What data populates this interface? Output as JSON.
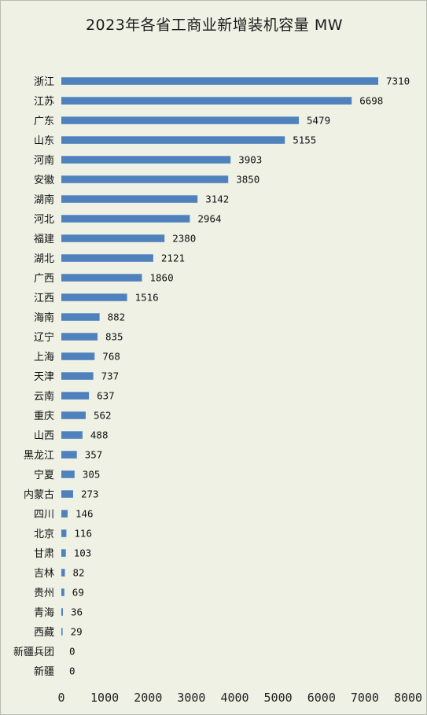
{
  "chart_data": {
    "type": "bar",
    "orientation": "horizontal",
    "title": "2023年各省工商业新增装机容量 MW",
    "categories": [
      "浙江",
      "江苏",
      "广东",
      "山东",
      "河南",
      "安徽",
      "湖南",
      "河北",
      "福建",
      "湖北",
      "广西",
      "江西",
      "海南",
      "辽宁",
      "上海",
      "天津",
      "云南",
      "重庆",
      "山西",
      "黑龙江",
      "宁夏",
      "内蒙古",
      "四川",
      "北京",
      "甘肃",
      "吉林",
      "贵州",
      "青海",
      "西藏",
      "新疆兵团",
      "新疆"
    ],
    "values": [
      7310,
      6698,
      5479,
      5155,
      3903,
      3850,
      3142,
      2964,
      2380,
      2121,
      1860,
      1516,
      882,
      835,
      768,
      737,
      637,
      562,
      488,
      357,
      305,
      273,
      146,
      116,
      103,
      82,
      69,
      36,
      29,
      0,
      0
    ],
    "xlim": [
      0,
      8000
    ],
    "xticks": [
      0,
      1000,
      2000,
      3000,
      4000,
      5000,
      6000,
      7000,
      8000
    ],
    "bar_color": "#4f81bd",
    "background_color": "#eef1e4",
    "grid": false,
    "legend": "none",
    "data_labels": true
  }
}
